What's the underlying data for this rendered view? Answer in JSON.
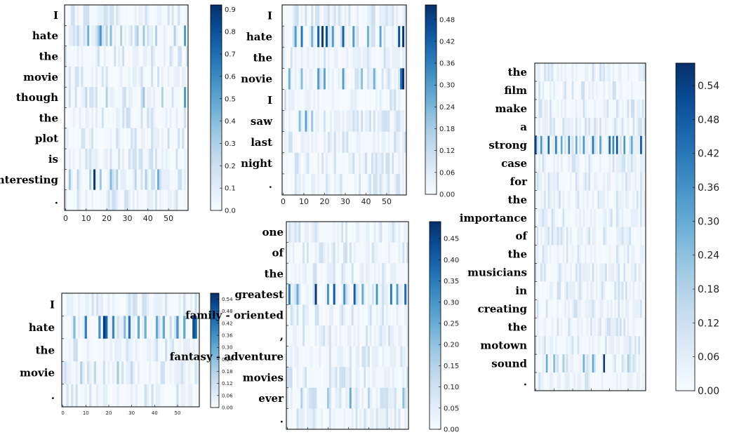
{
  "chart_data": [
    {
      "type": "heatmap",
      "tokens": [
        "I",
        "hate",
        "the",
        "movie",
        "though",
        "the",
        "plot",
        "is",
        "interesting",
        "."
      ],
      "x_ticks": [
        "0",
        "10",
        "20",
        "30",
        "40",
        "50"
      ],
      "xlim": [
        0,
        59
      ],
      "colorbar": {
        "ticks": [
          "0.0",
          "0.1",
          "0.2",
          "0.3",
          "0.4",
          "0.5",
          "0.6",
          "0.7",
          "0.8",
          "0.9"
        ],
        "range": [
          0,
          0.92
        ]
      },
      "highlights": [
        {
          "row": 1,
          "cols": [
            6,
            11,
            16,
            17,
            20,
            22,
            27,
            35,
            38,
            44,
            53,
            58
          ],
          "values": [
            0.25,
            0.45,
            0.35,
            0.55,
            0.3,
            0.4,
            0.3,
            0.3,
            0.35,
            0.3,
            0.3,
            0.55
          ]
        },
        {
          "row": 4,
          "cols": [
            10,
            20,
            38,
            47,
            58
          ],
          "values": [
            0.25,
            0.3,
            0.35,
            0.3,
            0.55
          ]
        },
        {
          "row": 8,
          "cols": [
            2,
            6,
            12,
            14,
            17,
            22,
            25,
            34,
            39,
            45
          ],
          "values": [
            0.35,
            0.25,
            0.3,
            0.9,
            0.35,
            0.4,
            0.3,
            0.25,
            0.3,
            0.45
          ]
        }
      ]
    },
    {
      "type": "heatmap",
      "tokens": [
        "I",
        "hate",
        "the",
        "novie",
        "I",
        "saw",
        "last",
        "night",
        "."
      ],
      "x_ticks": [
        "0",
        "10",
        "20",
        "30",
        "40",
        "50"
      ],
      "xlim": [
        0,
        59
      ],
      "colorbar": {
        "ticks": [
          "0.00",
          "0.06",
          "0.12",
          "0.18",
          "0.24",
          "0.30",
          "0.36",
          "0.42",
          "0.48"
        ],
        "range": [
          0,
          0.52
        ]
      },
      "highlights": [
        {
          "row": 1,
          "cols": [
            6,
            9,
            14,
            17,
            19,
            21,
            24,
            29,
            34,
            41,
            47,
            56,
            58
          ],
          "values": [
            0.3,
            0.38,
            0.25,
            0.42,
            0.5,
            0.45,
            0.3,
            0.42,
            0.3,
            0.25,
            0.28,
            0.45,
            0.5
          ]
        },
        {
          "row": 3,
          "cols": [
            3,
            9,
            17,
            20,
            29,
            38,
            44,
            57,
            58
          ],
          "values": [
            0.25,
            0.22,
            0.3,
            0.28,
            0.3,
            0.22,
            0.25,
            0.4,
            0.52
          ]
        },
        {
          "row": 5,
          "cols": [
            8,
            11,
            14
          ],
          "values": [
            0.22,
            0.28,
            0.2
          ]
        }
      ]
    },
    {
      "type": "heatmap",
      "tokens": [
        "I",
        "hate",
        "the",
        "movie",
        "."
      ],
      "x_ticks": [
        "0",
        "10",
        "20",
        "30",
        "40",
        "50"
      ],
      "xlim": [
        0,
        59
      ],
      "colorbar": {
        "ticks": [
          "0.00",
          "0.06",
          "0.12",
          "0.18",
          "0.24",
          "0.30",
          "0.36",
          "0.42",
          "0.48",
          "0.54"
        ],
        "range": [
          0,
          0.57
        ]
      },
      "highlights": [
        {
          "row": 1,
          "cols": [
            5,
            10,
            16,
            18,
            19,
            22,
            27,
            29,
            33,
            36,
            41,
            44,
            50,
            53,
            57,
            58
          ],
          "values": [
            0.25,
            0.4,
            0.35,
            0.55,
            0.45,
            0.38,
            0.25,
            0.42,
            0.3,
            0.28,
            0.3,
            0.3,
            0.35,
            0.3,
            0.5,
            0.45
          ]
        },
        {
          "row": 3,
          "cols": [
            8,
            14,
            24,
            30
          ],
          "values": [
            0.18,
            0.15,
            0.2,
            0.15
          ]
        }
      ]
    },
    {
      "type": "heatmap",
      "tokens": [
        "one",
        "of",
        "the",
        "greatest",
        "family - oriented",
        ",",
        "fantasy - adventure",
        "movies",
        "ever",
        "."
      ],
      "x_ticks": [],
      "xlim": [
        0,
        59
      ],
      "colorbar": {
        "ticks": [
          "0.00",
          "0.05",
          "0.10",
          "0.15",
          "0.20",
          "0.25",
          "0.30",
          "0.35",
          "0.40",
          "0.45"
        ],
        "range": [
          0,
          0.49
        ]
      },
      "highlights": [
        {
          "row": 3,
          "cols": [
            1,
            5,
            14,
            20,
            23,
            28,
            33,
            37,
            44,
            51,
            54,
            58
          ],
          "values": [
            0.35,
            0.25,
            0.48,
            0.3,
            0.42,
            0.3,
            0.4,
            0.25,
            0.3,
            0.35,
            0.28,
            0.38
          ]
        },
        {
          "row": 8,
          "cols": [
            7,
            13,
            20,
            31,
            40,
            57
          ],
          "values": [
            0.15,
            0.12,
            0.18,
            0.25,
            0.15,
            0.2
          ]
        }
      ]
    },
    {
      "type": "heatmap",
      "tokens": [
        "the",
        "film",
        "make",
        "a",
        "strong",
        "case",
        "for",
        "the",
        "importance",
        "of",
        "the",
        "musicians",
        "in",
        "creating",
        "the",
        "motown",
        "sound",
        "."
      ],
      "x_ticks": [],
      "xlim": [
        0,
        59
      ],
      "colorbar": {
        "ticks": [
          "0.00",
          "0.06",
          "0.12",
          "0.18",
          "0.24",
          "0.30",
          "0.36",
          "0.42",
          "0.48",
          "0.54"
        ],
        "range": [
          0,
          0.58
        ]
      },
      "highlights": [
        {
          "row": 4,
          "cols": [
            0,
            3,
            7,
            11,
            14,
            18,
            22,
            26,
            31,
            35,
            40,
            42,
            44,
            48,
            52,
            57
          ],
          "values": [
            0.5,
            0.35,
            0.45,
            0.4,
            0.3,
            0.38,
            0.3,
            0.35,
            0.42,
            0.32,
            0.45,
            0.38,
            0.5,
            0.35,
            0.3,
            0.5
          ]
        },
        {
          "row": 16,
          "cols": [
            6,
            10,
            15,
            26,
            31,
            37,
            50
          ],
          "values": [
            0.3,
            0.25,
            0.2,
            0.28,
            0.3,
            0.55,
            0.2
          ]
        }
      ]
    }
  ]
}
